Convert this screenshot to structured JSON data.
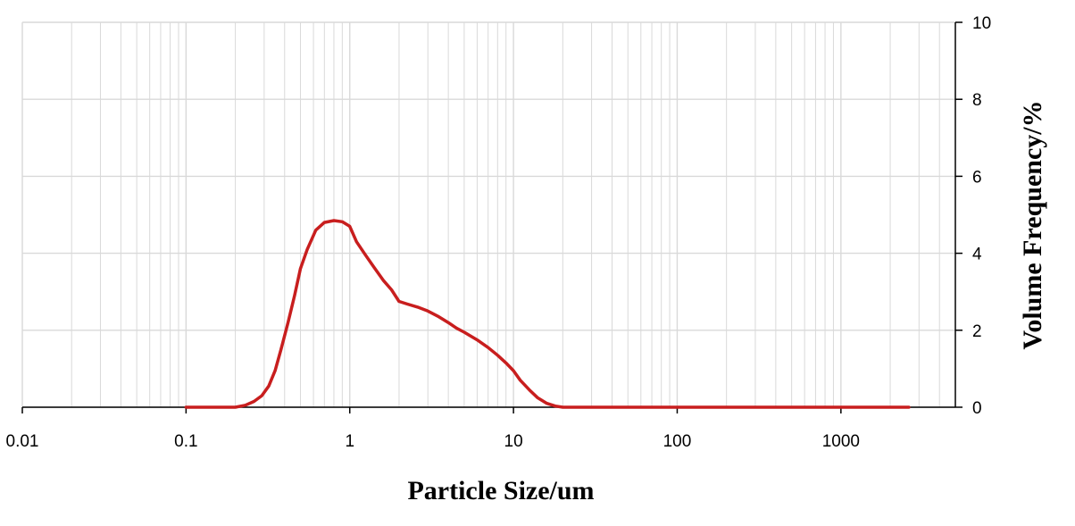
{
  "chart_data": {
    "type": "line",
    "title": "",
    "xlabel": "Particle Size/um",
    "ylabel": "Volume Frequency/%",
    "x_scale": "log",
    "xlim": [
      0.01,
      5000
    ],
    "ylim": [
      0,
      10
    ],
    "x_ticks": [
      0.01,
      0.1,
      1,
      10,
      100,
      1000
    ],
    "x_tick_labels": [
      "0.01",
      "0.1",
      "1",
      "10",
      "100",
      "1000"
    ],
    "y_ticks": [
      0,
      2,
      4,
      6,
      8,
      10
    ],
    "y_tick_labels": [
      "0",
      "2",
      "4",
      "6",
      "8",
      "10"
    ],
    "y_axis_side": "right",
    "grid": true,
    "legend": "none",
    "colors": {
      "line": "#c81e1e",
      "grid": "#d9d9d9",
      "axis": "#000000"
    },
    "series": [
      {
        "x": [
          0.1,
          0.16,
          0.2,
          0.23,
          0.26,
          0.29,
          0.32,
          0.35,
          0.38,
          0.42,
          0.46,
          0.5,
          0.55,
          0.62,
          0.7,
          0.8,
          0.9,
          1.0,
          1.1,
          1.25,
          1.4,
          1.6,
          1.8,
          2.0,
          2.25,
          2.6,
          3.0,
          3.5,
          4.0,
          4.5,
          5.0,
          6.0,
          7.0,
          8.0,
          9.0,
          10.0,
          11.0,
          12.5,
          14.0,
          16.0,
          18.0,
          20.0,
          22.0,
          30,
          100,
          1000,
          2600
        ],
        "y": [
          0,
          0,
          0,
          0.05,
          0.15,
          0.3,
          0.55,
          0.95,
          1.5,
          2.2,
          2.9,
          3.6,
          4.1,
          4.6,
          4.8,
          4.85,
          4.82,
          4.7,
          4.3,
          3.95,
          3.65,
          3.3,
          3.05,
          2.75,
          2.68,
          2.6,
          2.5,
          2.35,
          2.2,
          2.05,
          1.95,
          1.75,
          1.55,
          1.35,
          1.15,
          0.95,
          0.7,
          0.45,
          0.25,
          0.1,
          0.03,
          0,
          0,
          0,
          0,
          0,
          0
        ]
      }
    ]
  }
}
